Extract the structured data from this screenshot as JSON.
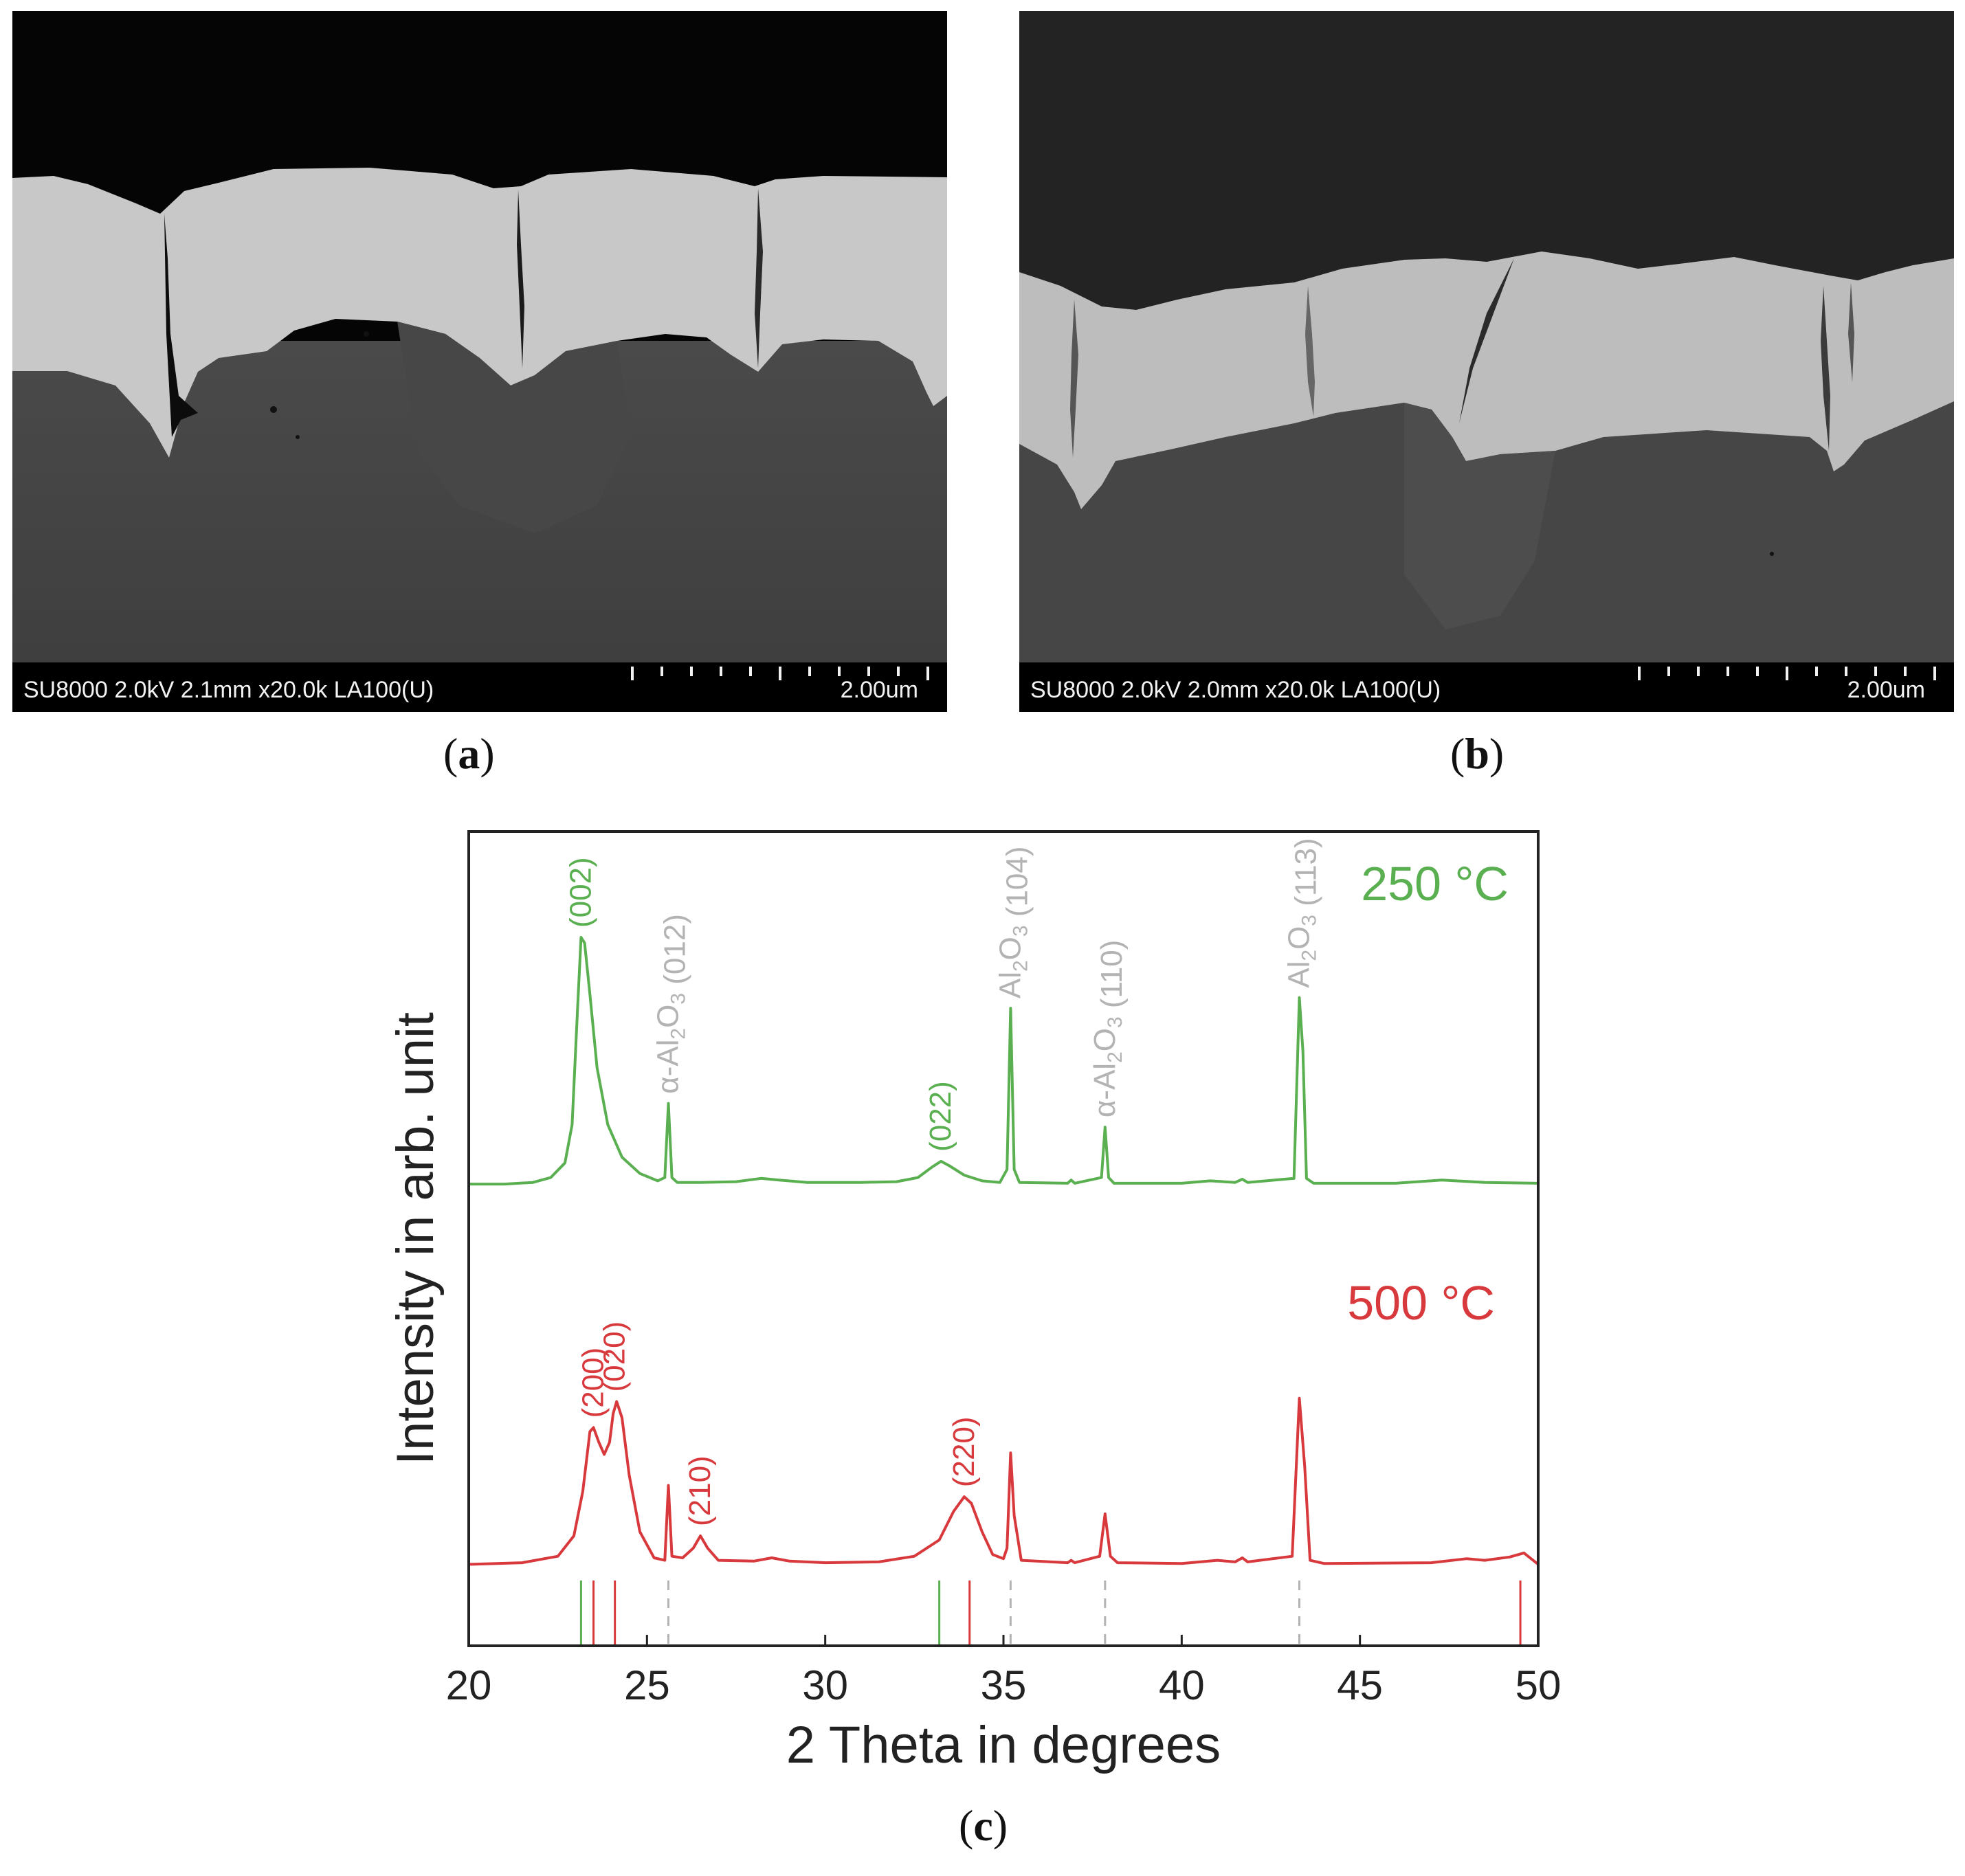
{
  "panels": {
    "a": {
      "caption_letter": "a",
      "sem_info": "SU8000 2.0kV 2.1mm x20.0k LA100(U)",
      "scale_label": "2.00um"
    },
    "b": {
      "caption_letter": "b",
      "sem_info": "SU8000 2.0kV 2.0mm x20.0k LA100(U)",
      "scale_label": "2.00um"
    },
    "c": {
      "caption_letter": "c"
    }
  },
  "colors": {
    "green": "#5aaf50",
    "red": "#d8393c",
    "gray": "#b3b3b3",
    "axis": "#222222"
  },
  "chart_data": {
    "type": "line",
    "xlabel": "2 Theta in degrees",
    "ylabel": "Intensity in arb. unit",
    "xlim": [
      20,
      50
    ],
    "xticks": [
      20,
      25,
      30,
      35,
      40,
      45,
      50
    ],
    "ylim": [
      0,
      1
    ],
    "series": [
      {
        "name": "250 °C",
        "color": "green",
        "baseline": 0.567,
        "points": [
          [
            20,
            0.567
          ],
          [
            21,
            0.567
          ],
          [
            21.8,
            0.569
          ],
          [
            22.3,
            0.575
          ],
          [
            22.7,
            0.593
          ],
          [
            22.9,
            0.64
          ],
          [
            23.05,
            0.78
          ],
          [
            23.15,
            0.87
          ],
          [
            23.25,
            0.863
          ],
          [
            23.4,
            0.8
          ],
          [
            23.6,
            0.71
          ],
          [
            23.9,
            0.64
          ],
          [
            24.3,
            0.6
          ],
          [
            24.8,
            0.58
          ],
          [
            25.3,
            0.571
          ],
          [
            25.5,
            0.575
          ],
          [
            25.6,
            0.666
          ],
          [
            25.7,
            0.575
          ],
          [
            25.85,
            0.569
          ],
          [
            26.5,
            0.569
          ],
          [
            27.5,
            0.57
          ],
          [
            28.2,
            0.574
          ],
          [
            28.7,
            0.572
          ],
          [
            29.5,
            0.569
          ],
          [
            31,
            0.569
          ],
          [
            32,
            0.57
          ],
          [
            32.6,
            0.575
          ],
          [
            33,
            0.588
          ],
          [
            33.25,
            0.595
          ],
          [
            33.5,
            0.589
          ],
          [
            33.9,
            0.578
          ],
          [
            34.4,
            0.571
          ],
          [
            34.9,
            0.569
          ],
          [
            35.1,
            0.585
          ],
          [
            35.2,
            0.783
          ],
          [
            35.3,
            0.585
          ],
          [
            35.45,
            0.569
          ],
          [
            36.8,
            0.568
          ],
          [
            36.9,
            0.572
          ],
          [
            37,
            0.568
          ],
          [
            37.75,
            0.575
          ],
          [
            37.85,
            0.637
          ],
          [
            37.95,
            0.575
          ],
          [
            38.1,
            0.568
          ],
          [
            40,
            0.568
          ],
          [
            40.8,
            0.571
          ],
          [
            41.5,
            0.569
          ],
          [
            41.7,
            0.573
          ],
          [
            41.85,
            0.569
          ],
          [
            43.15,
            0.574
          ],
          [
            43.3,
            0.796
          ],
          [
            43.4,
            0.73
          ],
          [
            43.5,
            0.574
          ],
          [
            43.7,
            0.568
          ],
          [
            46,
            0.568
          ],
          [
            47.3,
            0.572
          ],
          [
            48.5,
            0.569
          ],
          [
            50,
            0.568
          ]
        ]
      },
      {
        "name": "500 °C",
        "color": "red",
        "baseline": 0.1,
        "points": [
          [
            20,
            0.1
          ],
          [
            21.5,
            0.102
          ],
          [
            22.5,
            0.11
          ],
          [
            22.95,
            0.135
          ],
          [
            23.2,
            0.19
          ],
          [
            23.4,
            0.263
          ],
          [
            23.5,
            0.268
          ],
          [
            23.65,
            0.25
          ],
          [
            23.8,
            0.235
          ],
          [
            23.95,
            0.25
          ],
          [
            24.05,
            0.285
          ],
          [
            24.15,
            0.3
          ],
          [
            24.3,
            0.28
          ],
          [
            24.5,
            0.21
          ],
          [
            24.8,
            0.14
          ],
          [
            25.2,
            0.108
          ],
          [
            25.5,
            0.105
          ],
          [
            25.6,
            0.197
          ],
          [
            25.7,
            0.11
          ],
          [
            26,
            0.108
          ],
          [
            26.3,
            0.12
          ],
          [
            26.5,
            0.135
          ],
          [
            26.7,
            0.12
          ],
          [
            27,
            0.105
          ],
          [
            28,
            0.104
          ],
          [
            28.5,
            0.108
          ],
          [
            29,
            0.104
          ],
          [
            30,
            0.102
          ],
          [
            31.5,
            0.103
          ],
          [
            32.5,
            0.11
          ],
          [
            33.2,
            0.13
          ],
          [
            33.6,
            0.165
          ],
          [
            33.9,
            0.183
          ],
          [
            34.1,
            0.175
          ],
          [
            34.4,
            0.14
          ],
          [
            34.7,
            0.112
          ],
          [
            35,
            0.107
          ],
          [
            35.1,
            0.12
          ],
          [
            35.2,
            0.237
          ],
          [
            35.3,
            0.16
          ],
          [
            35.5,
            0.105
          ],
          [
            36.8,
            0.102
          ],
          [
            36.9,
            0.105
          ],
          [
            37,
            0.102
          ],
          [
            37.7,
            0.11
          ],
          [
            37.85,
            0.162
          ],
          [
            38,
            0.11
          ],
          [
            38.2,
            0.102
          ],
          [
            40,
            0.101
          ],
          [
            41,
            0.105
          ],
          [
            41.5,
            0.103
          ],
          [
            41.7,
            0.108
          ],
          [
            41.85,
            0.103
          ],
          [
            43.1,
            0.11
          ],
          [
            43.3,
            0.304
          ],
          [
            43.45,
            0.22
          ],
          [
            43.6,
            0.105
          ],
          [
            44,
            0.101
          ],
          [
            47,
            0.102
          ],
          [
            48,
            0.107
          ],
          [
            48.5,
            0.105
          ],
          [
            49.2,
            0.109
          ],
          [
            49.6,
            0.114
          ],
          [
            50,
            0.1
          ]
        ]
      }
    ],
    "annotations": [
      {
        "label": "(002)",
        "x": 23.15,
        "y": 0.87,
        "color": "green"
      },
      {
        "label": "α-Al2O3 (012)",
        "x": 25.6,
        "y": 0.666,
        "color": "gray"
      },
      {
        "label": "(022)",
        "x": 33.25,
        "y": 0.595,
        "color": "green"
      },
      {
        "label": "Al2O3 (104)",
        "x": 35.2,
        "y": 0.783,
        "color": "gray"
      },
      {
        "label": "α-Al2O3 (110)",
        "x": 37.85,
        "y": 0.637,
        "color": "gray"
      },
      {
        "label": "Al2O3 (113)",
        "x": 43.3,
        "y": 0.796,
        "color": "gray"
      },
      {
        "label": "(200)",
        "x": 23.5,
        "y": 0.268,
        "color": "red"
      },
      {
        "label": "(020)",
        "x": 24.1,
        "y": 0.3,
        "color": "red"
      },
      {
        "label": "(210)",
        "x": 26.5,
        "y": 0.135,
        "color": "red"
      },
      {
        "label": "(220)",
        "x": 33.9,
        "y": 0.183,
        "color": "red"
      }
    ],
    "legend_labels": [
      {
        "label": "250 °C",
        "color": "green",
        "position": "top-right"
      },
      {
        "label": "500 °C",
        "color": "red",
        "position": "middle-right"
      }
    ],
    "reference_lines": [
      {
        "x": 23.15,
        "color": "green",
        "style": "solid"
      },
      {
        "x": 23.5,
        "color": "red",
        "style": "solid"
      },
      {
        "x": 24.1,
        "color": "red",
        "style": "solid"
      },
      {
        "x": 25.6,
        "color": "gray",
        "style": "dashed"
      },
      {
        "x": 33.2,
        "color": "green",
        "style": "solid"
      },
      {
        "x": 34.05,
        "color": "red",
        "style": "solid"
      },
      {
        "x": 35.2,
        "color": "gray",
        "style": "dashed"
      },
      {
        "x": 37.85,
        "color": "gray",
        "style": "dashed"
      },
      {
        "x": 43.3,
        "color": "gray",
        "style": "dashed"
      },
      {
        "x": 49.5,
        "color": "red",
        "style": "solid"
      }
    ]
  }
}
